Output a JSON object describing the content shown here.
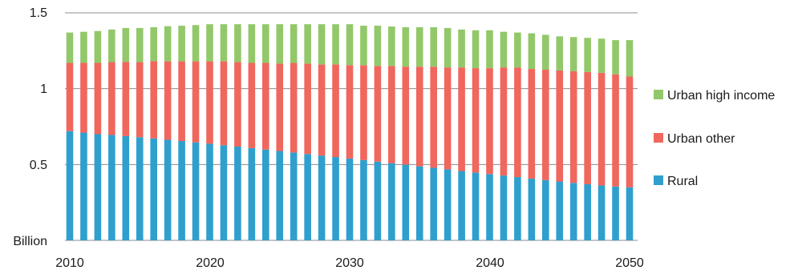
{
  "chart_data": {
    "type": "bar",
    "stacked": true,
    "title": "",
    "xlabel": "",
    "ylabel": "Billion",
    "ylim": [
      0,
      1.5
    ],
    "y_ticks": [
      "Billion",
      "0.5",
      "1",
      "1.5"
    ],
    "x_ticks": [
      "2010",
      "2020",
      "2030",
      "2040",
      "2050"
    ],
    "grid": "horizontal lines at 0.5, 1 and 1.5",
    "legend_position": "right",
    "categories": [
      "2010",
      "2011",
      "2012",
      "2013",
      "2014",
      "2015",
      "2016",
      "2017",
      "2018",
      "2019",
      "2020",
      "2021",
      "2022",
      "2023",
      "2024",
      "2025",
      "2026",
      "2027",
      "2028",
      "2029",
      "2030",
      "2031",
      "2032",
      "2033",
      "2034",
      "2035",
      "2036",
      "2037",
      "2038",
      "2039",
      "2040",
      "2041",
      "2042",
      "2043",
      "2044",
      "2045",
      "2046",
      "2047",
      "2048",
      "2049",
      "2050"
    ],
    "series": [
      {
        "name": "Rural",
        "color": "#2f9fce",
        "values": [
          0.72,
          0.71,
          0.7,
          0.695,
          0.687,
          0.68,
          0.672,
          0.663,
          0.655,
          0.646,
          0.637,
          0.627,
          0.618,
          0.608,
          0.598,
          0.589,
          0.579,
          0.569,
          0.559,
          0.549,
          0.539,
          0.529,
          0.519,
          0.509,
          0.499,
          0.488,
          0.478,
          0.468,
          0.457,
          0.447,
          0.437,
          0.427,
          0.417,
          0.407,
          0.397,
          0.388,
          0.379,
          0.37,
          0.362,
          0.355,
          0.35
        ]
      },
      {
        "name": "Urban other",
        "color": "#f0675d",
        "values": [
          0.45,
          0.46,
          0.47,
          0.48,
          0.49,
          0.495,
          0.51,
          0.517,
          0.525,
          0.534,
          0.543,
          0.553,
          0.557,
          0.562,
          0.572,
          0.576,
          0.591,
          0.596,
          0.601,
          0.611,
          0.616,
          0.626,
          0.631,
          0.641,
          0.646,
          0.657,
          0.667,
          0.672,
          0.683,
          0.688,
          0.698,
          0.713,
          0.723,
          0.723,
          0.728,
          0.732,
          0.736,
          0.74,
          0.743,
          0.74,
          0.73
        ]
      },
      {
        "name": "Urban high income",
        "color": "#93c86a",
        "values": [
          0.2,
          0.205,
          0.21,
          0.215,
          0.223,
          0.225,
          0.223,
          0.232,
          0.235,
          0.239,
          0.245,
          0.245,
          0.25,
          0.255,
          0.255,
          0.26,
          0.255,
          0.26,
          0.265,
          0.265,
          0.27,
          0.26,
          0.265,
          0.26,
          0.26,
          0.26,
          0.26,
          0.26,
          0.25,
          0.25,
          0.25,
          0.235,
          0.23,
          0.235,
          0.23,
          0.225,
          0.225,
          0.225,
          0.225,
          0.225,
          0.24
        ]
      }
    ]
  }
}
